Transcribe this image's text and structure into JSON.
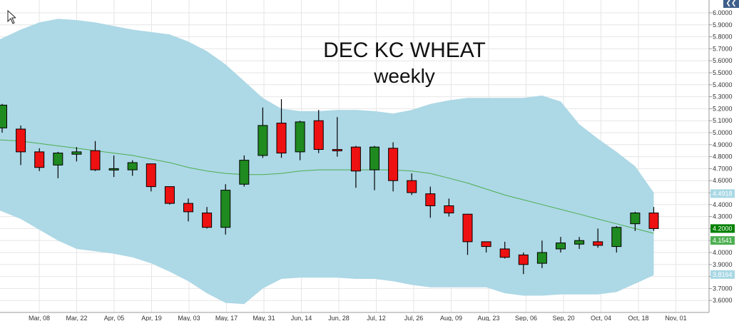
{
  "chart_data": {
    "type": "candlestick",
    "title": "DEC KC WHEAT",
    "subtitle": "weekly",
    "ylim": [
      3.55,
      6.04
    ],
    "y_ticks": [
      "6.0000",
      "5.9000",
      "5.8000",
      "5.7000",
      "5.6000",
      "5.5000",
      "5.4000",
      "5.3000",
      "5.2000",
      "5.1000",
      "5.0000",
      "4.9000",
      "4.8000",
      "4.7000",
      "4.6000",
      "4.5000",
      "4.4000",
      "4.3000",
      "4.2000",
      "4.1000",
      "4.0000",
      "3.9000",
      "3.8000",
      "3.7000",
      "3.6000"
    ],
    "x_ticks": [
      "Mar, 08",
      "Mar, 22",
      "Apr, 05",
      "Apr, 19",
      "May, 03",
      "May, 17",
      "May, 31",
      "Jun, 14",
      "Jun, 28",
      "Jul, 12",
      "Jul, 26",
      "Aug, 09",
      "Aug, 23",
      "Sep, 06",
      "Sep, 20",
      "Oct, 04",
      "Oct, 18",
      "Nov, 01"
    ],
    "grid": true,
    "colors": {
      "up": "#1f8a1f",
      "down": "#ee1111",
      "band": "#add8e6",
      "mid": "#4caf50",
      "price": "#008000",
      "upper": "#a8d8e4",
      "lower": "#a8d8e4"
    },
    "price_labels": {
      "upper": "4.4918",
      "last": "4.2000",
      "mid": "4.1541",
      "lower": "3.8164"
    },
    "candles": [
      {
        "open": 5.04,
        "high": 5.24,
        "low": 5.0,
        "close": 5.23
      },
      {
        "open": 5.03,
        "high": 5.06,
        "low": 4.73,
        "close": 4.84
      },
      {
        "open": 4.84,
        "high": 4.87,
        "low": 4.68,
        "close": 4.71
      },
      {
        "open": 4.73,
        "high": 4.84,
        "low": 4.62,
        "close": 4.83
      },
      {
        "open": 4.82,
        "high": 4.88,
        "low": 4.76,
        "close": 4.84
      },
      {
        "open": 4.85,
        "high": 4.93,
        "low": 4.68,
        "close": 4.69
      },
      {
        "open": 4.7,
        "high": 4.81,
        "low": 4.63,
        "close": 4.7
      },
      {
        "open": 4.69,
        "high": 4.77,
        "low": 4.64,
        "close": 4.75
      },
      {
        "open": 4.74,
        "high": 4.74,
        "low": 4.51,
        "close": 4.55
      },
      {
        "open": 4.55,
        "high": 4.55,
        "low": 4.4,
        "close": 4.41
      },
      {
        "open": 4.41,
        "high": 4.45,
        "low": 4.26,
        "close": 4.34
      },
      {
        "open": 4.33,
        "high": 4.38,
        "low": 4.2,
        "close": 4.21
      },
      {
        "open": 4.21,
        "high": 4.57,
        "low": 4.15,
        "close": 4.52
      },
      {
        "open": 4.57,
        "high": 4.81,
        "low": 4.55,
        "close": 4.77
      },
      {
        "open": 4.81,
        "high": 5.21,
        "low": 4.79,
        "close": 5.06
      },
      {
        "open": 5.08,
        "high": 5.28,
        "low": 4.79,
        "close": 4.83
      },
      {
        "open": 4.84,
        "high": 5.1,
        "low": 4.77,
        "close": 5.09
      },
      {
        "open": 5.1,
        "high": 5.19,
        "low": 4.83,
        "close": 4.86
      },
      {
        "open": 4.86,
        "high": 5.13,
        "low": 4.8,
        "close": 4.85
      },
      {
        "open": 4.88,
        "high": 4.89,
        "low": 4.54,
        "close": 4.68
      },
      {
        "open": 4.69,
        "high": 4.89,
        "low": 4.52,
        "close": 4.88
      },
      {
        "open": 4.87,
        "high": 4.92,
        "low": 4.51,
        "close": 4.6
      },
      {
        "open": 4.6,
        "high": 4.66,
        "low": 4.48,
        "close": 4.5
      },
      {
        "open": 4.49,
        "high": 4.55,
        "low": 4.29,
        "close": 4.39
      },
      {
        "open": 4.39,
        "high": 4.45,
        "low": 4.3,
        "close": 4.33
      },
      {
        "open": 4.32,
        "high": 4.32,
        "low": 3.98,
        "close": 4.09
      },
      {
        "open": 4.09,
        "high": 4.09,
        "low": 4.0,
        "close": 4.05
      },
      {
        "open": 4.03,
        "high": 4.09,
        "low": 3.95,
        "close": 3.96
      },
      {
        "open": 3.98,
        "high": 4.0,
        "low": 3.82,
        "close": 3.9
      },
      {
        "open": 3.91,
        "high": 4.1,
        "low": 3.87,
        "close": 4.0
      },
      {
        "open": 4.03,
        "high": 4.13,
        "low": 4.0,
        "close": 4.08
      },
      {
        "open": 4.07,
        "high": 4.13,
        "low": 4.03,
        "close": 4.1
      },
      {
        "open": 4.09,
        "high": 4.2,
        "low": 4.04,
        "close": 4.06
      },
      {
        "open": 4.05,
        "high": 4.22,
        "low": 4.0,
        "close": 4.21
      },
      {
        "open": 4.24,
        "high": 4.34,
        "low": 4.18,
        "close": 4.33
      },
      {
        "open": 4.33,
        "high": 4.38,
        "low": 4.18,
        "close": 4.2
      }
    ],
    "bollinger": {
      "upper": [
        5.78,
        5.86,
        5.92,
        5.95,
        5.94,
        5.92,
        5.89,
        5.86,
        5.84,
        5.82,
        5.76,
        5.68,
        5.57,
        5.43,
        5.29,
        5.2,
        5.18,
        5.18,
        5.19,
        5.19,
        5.18,
        5.16,
        5.19,
        5.24,
        5.27,
        5.29,
        5.29,
        5.29,
        5.29,
        5.31,
        5.26,
        5.07,
        4.95,
        4.84,
        4.72,
        4.5
      ],
      "middle": [
        4.94,
        4.93,
        4.91,
        4.89,
        4.87,
        4.85,
        4.83,
        4.81,
        4.78,
        4.75,
        4.71,
        4.68,
        4.66,
        4.65,
        4.65,
        4.66,
        4.68,
        4.69,
        4.69,
        4.69,
        4.69,
        4.69,
        4.68,
        4.66,
        4.62,
        4.58,
        4.53,
        4.48,
        4.44,
        4.4,
        4.36,
        4.32,
        4.28,
        4.24,
        4.2,
        4.16
      ],
      "lower": [
        4.35,
        4.28,
        4.19,
        4.1,
        4.03,
        4.01,
        3.99,
        3.96,
        3.91,
        3.84,
        3.76,
        3.66,
        3.58,
        3.57,
        3.7,
        3.78,
        3.79,
        3.79,
        3.79,
        3.78,
        3.78,
        3.76,
        3.73,
        3.71,
        3.71,
        3.71,
        3.71,
        3.66,
        3.64,
        3.64,
        3.65,
        3.65,
        3.65,
        3.67,
        3.74,
        3.81
      ]
    }
  }
}
